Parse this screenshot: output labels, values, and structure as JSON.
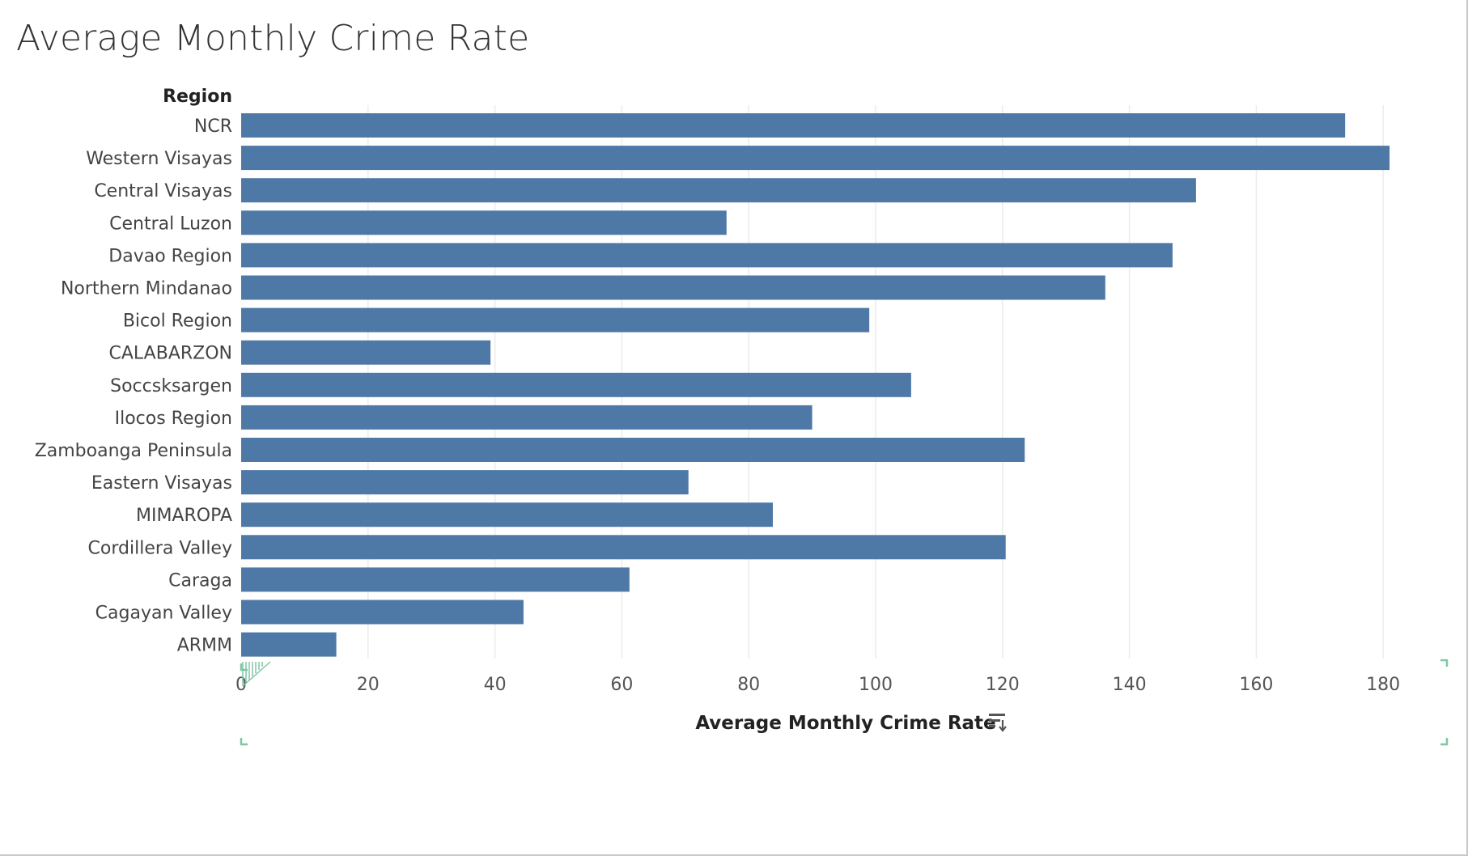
{
  "title": "Average Monthly Crime Rate",
  "sort_icon": "sort-descending-icon",
  "colors": {
    "bar": "#4e79a7",
    "grid": "#ececec",
    "axis_text": "#555555",
    "label_text": "#444444",
    "header_text": "#222222",
    "selection_mark": "#7fc6a4"
  },
  "chart_data": {
    "type": "bar",
    "orientation": "horizontal",
    "category_header": "Region",
    "xlabel": "Average Monthly Crime Rate",
    "xlim": [
      0,
      190
    ],
    "xticks": [
      0,
      20,
      40,
      60,
      80,
      100,
      120,
      140,
      160,
      180
    ],
    "grid": true,
    "categories": [
      "NCR",
      "Western Visayas",
      "Central Visayas",
      "Central Luzon",
      "Davao Region",
      "Northern Mindanao",
      "Bicol Region",
      "CALABARZON",
      "Soccsksargen",
      "Ilocos Region",
      "Zamboanga  Peninsula",
      "Eastern Visayas",
      "MIMAROPA",
      "Cordillera Valley",
      "Caraga",
      "Cagayan Valley",
      "ARMM"
    ],
    "values": [
      174,
      181,
      150.5,
      76.5,
      146.8,
      136.2,
      99,
      39.3,
      105.6,
      90,
      123.5,
      70.5,
      83.8,
      120.5,
      61.2,
      44.5,
      15
    ]
  }
}
